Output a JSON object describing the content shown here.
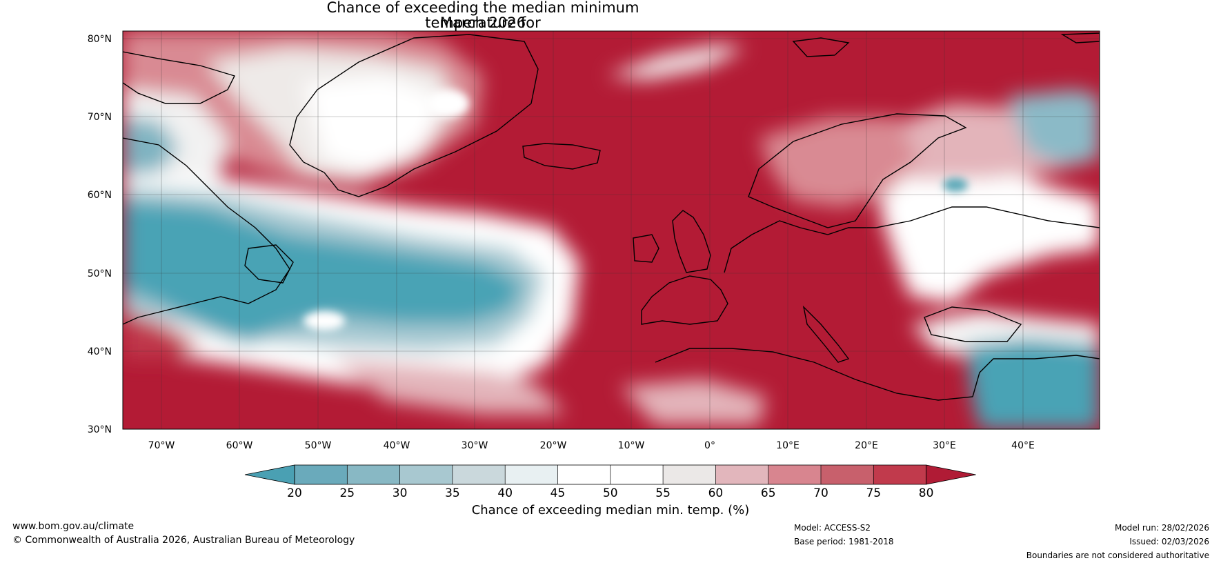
{
  "title": {
    "line1": "Chance of exceeding the median minimum temperature for",
    "line2": "March 2026"
  },
  "map": {
    "lat_labels": [
      "80°N",
      "70°N",
      "60°N",
      "50°N",
      "40°N",
      "30°N"
    ],
    "lon_labels": [
      "70°W",
      "60°W",
      "50°W",
      "40°W",
      "30°W",
      "20°W",
      "10°W",
      "0°",
      "10°E",
      "20°E",
      "30°E",
      "40°E"
    ],
    "region": "North Atlantic and Europe",
    "colors": {
      "very_low": "#4aa3b5",
      "low": "#88b9c6",
      "near_median": "#ffffff",
      "high": "#d6838d",
      "very_high": "#b31b35",
      "coast": "#000000",
      "borders": "#808080"
    }
  },
  "colorbar": {
    "ticks": [
      "20",
      "25",
      "30",
      "35",
      "40",
      "45",
      "50",
      "55",
      "60",
      "65",
      "70",
      "75",
      "80"
    ],
    "segment_colors": [
      "#4aa0b3",
      "#6aaabb",
      "#88b8c4",
      "#a8c8d0",
      "#cad8dc",
      "#e8f0f2",
      "#ffffff",
      "#ffffff",
      "#ebe8e7",
      "#e2b6bc",
      "#d8858f",
      "#c8606c",
      "#c13a4c",
      "#b01b35"
    ],
    "label": "Chance of exceeding median min. temp. (%)"
  },
  "footer": {
    "url": "www.bom.gov.au/climate",
    "copyright": "© Commonwealth of Australia 2026, Australian Bureau of Meteorology",
    "model": "Model: ACCESS-S2",
    "base_period": "Base period: 1981-2018",
    "model_run": "Model run: 28/02/2026",
    "issued": "Issued: 02/03/2026",
    "disclaimer": "Boundaries are not considered authoritative"
  }
}
